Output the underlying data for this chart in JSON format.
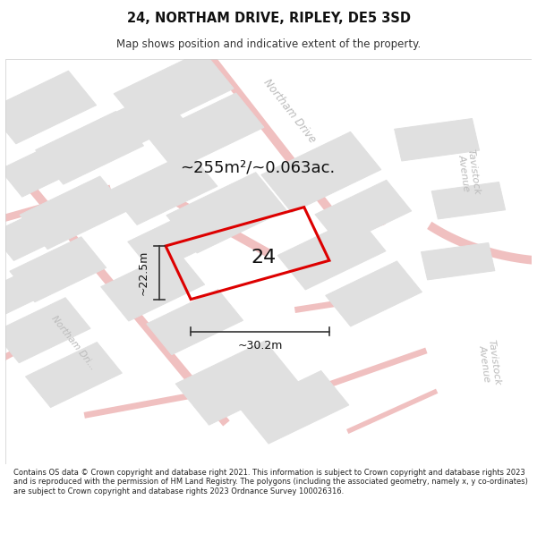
{
  "title": "24, NORTHAM DRIVE, RIPLEY, DE5 3SD",
  "subtitle": "Map shows position and indicative extent of the property.",
  "footer": "Contains OS data © Crown copyright and database right 2021. This information is subject to Crown copyright and database rights 2023 and is reproduced with the permission of HM Land Registry. The polygons (including the associated geometry, namely x, y co-ordinates) are subject to Crown copyright and database rights 2023 Ordnance Survey 100026316.",
  "area_label": "~255m²/~0.063ac.",
  "width_label": "~30.2m",
  "height_label": "~22.5m",
  "number_label": "24",
  "bg_color": "#ffffff",
  "map_bg": "#ffffff",
  "road_color": "#e8a8a8",
  "building_fill": "#e0e0e0",
  "building_edge": "#e0e0e0",
  "highlight_color": "#dd0000",
  "street_label_color": "#bbbbbb",
  "dim_color": "#333333"
}
